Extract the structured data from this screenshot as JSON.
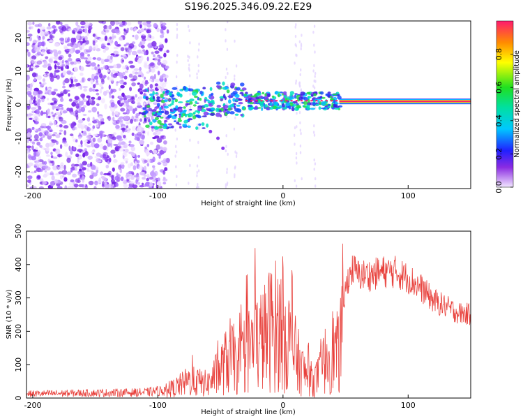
{
  "title": "S196.2025.346.09.22.E29",
  "chart_data": [
    {
      "type": "heatmap",
      "name": "spectrogram",
      "xlabel": "Height of straight line (km)",
      "ylabel": "Frequency (Hz)",
      "xlim": [
        -205,
        150
      ],
      "ylim": [
        -25,
        25
      ],
      "xticks": [
        -200,
        -100,
        0,
        100
      ],
      "yticks": [
        -20,
        -10,
        0,
        10,
        20
      ],
      "grid": false,
      "ridge_start_km": 45,
      "ridge_frequency_hz": 1,
      "colorbar": {
        "label": "Normalized spectral amplitude",
        "range": [
          0,
          1
        ],
        "ticks": [
          0.0,
          0.2,
          0.4,
          0.6,
          0.8
        ]
      }
    },
    {
      "type": "line",
      "name": "snr",
      "xlabel": "Height of straight line (km)",
      "ylabel": "SNR (10 * v/v)",
      "xlim": [
        -205,
        150
      ],
      "ylim": [
        0,
        500
      ],
      "xticks": [
        -200,
        -100,
        0,
        100
      ],
      "yticks": [
        0,
        100,
        200,
        300,
        400,
        500
      ],
      "grid": false,
      "color": "#e8413c",
      "series": [
        {
          "name": "SNR envelope",
          "x": [
            -205,
            -150,
            -110,
            -92,
            -85,
            -75,
            -60,
            -50,
            -42,
            -35,
            -28,
            -20,
            -15,
            -8,
            -3,
            0,
            5,
            10,
            15,
            20,
            25,
            30,
            35,
            40,
            45,
            48,
            52,
            56,
            60,
            70,
            80,
            90,
            100,
            110,
            120,
            130,
            140,
            150
          ],
          "y": [
            15,
            18,
            20,
            28,
            40,
            60,
            50,
            100,
            150,
            110,
            170,
            200,
            210,
            260,
            250,
            240,
            200,
            150,
            100,
            75,
            60,
            90,
            150,
            170,
            150,
            300,
            380,
            410,
            390,
            390,
            400,
            400,
            380,
            350,
            310,
            290,
            270,
            265
          ]
        }
      ]
    }
  ]
}
